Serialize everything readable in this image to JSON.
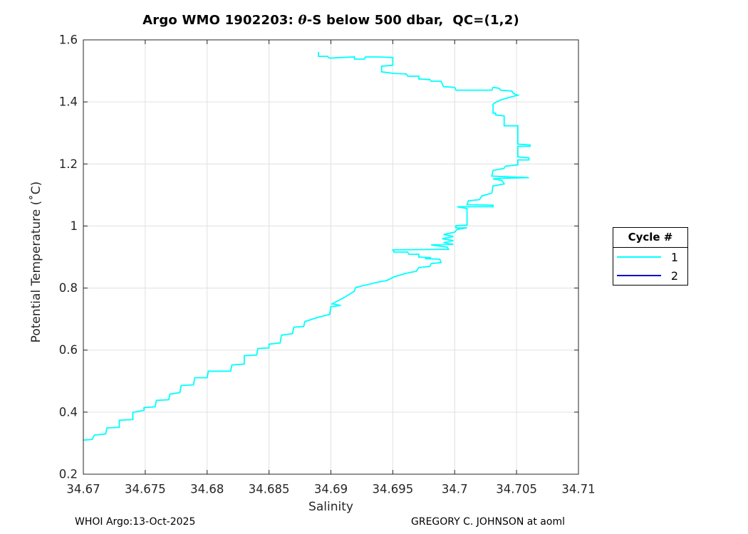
{
  "figure": {
    "title_prefix": "Argo WMO 1902203: ",
    "title_theta": "θ",
    "title_suffix": "-S below 500 dbar,  QC=(1,2)",
    "footer_left": "WHOI Argo:13-Oct-2025",
    "footer_right": "GREGORY C. JOHNSON at aoml"
  },
  "legend": {
    "title": "Cycle #",
    "entries": [
      {
        "label": "1",
        "color": "#00ffff"
      },
      {
        "label": "2",
        "color": "#0000cd"
      }
    ]
  },
  "chart_data": {
    "type": "line",
    "title": "Argo WMO 1902203: θ-S below 500 dbar,  QC=(1,2)",
    "xlabel": "Salinity",
    "ylabel": "Potential Temperature (˚C)",
    "xlim": [
      34.67,
      34.71
    ],
    "ylim": [
      0.2,
      1.6
    ],
    "xticks": [
      34.67,
      34.675,
      34.68,
      34.685,
      34.69,
      34.695,
      34.7,
      34.705,
      34.71
    ],
    "xtick_labels": [
      "34.67",
      "34.675",
      "34.68",
      "34.685",
      "34.69",
      "34.695",
      "34.7",
      "34.705",
      "34.71"
    ],
    "yticks": [
      0.2,
      0.4,
      0.6,
      0.8,
      1,
      1.2,
      1.4,
      1.6
    ],
    "ytick_labels": [
      "0.2",
      "0.4",
      "0.6",
      "0.8",
      "1",
      "1.2",
      "1.4",
      "1.6"
    ],
    "grid": true,
    "grid_color": "#e0e0e0",
    "axis_color": "#262626",
    "legend_position": "right-outside",
    "series": [
      {
        "name": "1",
        "color": "#00ffff",
        "points": [
          [
            34.689,
            1.561
          ],
          [
            34.689,
            1.547
          ],
          [
            34.6897,
            1.547
          ],
          [
            34.6899,
            1.541
          ],
          [
            34.6908,
            1.543
          ],
          [
            34.6919,
            1.545
          ],
          [
            34.6919,
            1.538
          ],
          [
            34.6927,
            1.538
          ],
          [
            34.6928,
            1.545
          ],
          [
            34.6939,
            1.545
          ],
          [
            34.695,
            1.543
          ],
          [
            34.695,
            1.518
          ],
          [
            34.6941,
            1.515
          ],
          [
            34.6941,
            1.497
          ],
          [
            34.6951,
            1.492
          ],
          [
            34.6961,
            1.49
          ],
          [
            34.6962,
            1.483
          ],
          [
            34.6971,
            1.483
          ],
          [
            34.6971,
            1.474
          ],
          [
            34.698,
            1.472
          ],
          [
            34.6981,
            1.467
          ],
          [
            34.6989,
            1.467
          ],
          [
            34.6991,
            1.449
          ],
          [
            34.7,
            1.447
          ],
          [
            34.7001,
            1.438
          ],
          [
            34.703,
            1.438
          ],
          [
            34.7031,
            1.447
          ],
          [
            34.7036,
            1.444
          ],
          [
            34.7037,
            1.438
          ],
          [
            34.7046,
            1.435
          ],
          [
            34.7048,
            1.426
          ],
          [
            34.7051,
            1.422
          ],
          [
            34.7042,
            1.412
          ],
          [
            34.7037,
            1.406
          ],
          [
            34.7032,
            1.396
          ],
          [
            34.7031,
            1.392
          ],
          [
            34.7031,
            1.364
          ],
          [
            34.7033,
            1.364
          ],
          [
            34.7033,
            1.358
          ],
          [
            34.704,
            1.355
          ],
          [
            34.704,
            1.323
          ],
          [
            34.7051,
            1.323
          ],
          [
            34.7051,
            1.264
          ],
          [
            34.7061,
            1.261
          ],
          [
            34.7061,
            1.257
          ],
          [
            34.7051,
            1.257
          ],
          [
            34.7051,
            1.223
          ],
          [
            34.706,
            1.22
          ],
          [
            34.706,
            1.213
          ],
          [
            34.7051,
            1.213
          ],
          [
            34.7051,
            1.197
          ],
          [
            34.7041,
            1.193
          ],
          [
            34.704,
            1.186
          ],
          [
            34.7031,
            1.179
          ],
          [
            34.703,
            1.161
          ],
          [
            34.704,
            1.159
          ],
          [
            34.706,
            1.156
          ],
          [
            34.7041,
            1.154
          ],
          [
            34.7031,
            1.152
          ],
          [
            34.7038,
            1.147
          ],
          [
            34.704,
            1.136
          ],
          [
            34.7031,
            1.129
          ],
          [
            34.703,
            1.106
          ],
          [
            34.7022,
            1.097
          ],
          [
            34.702,
            1.085
          ],
          [
            34.7011,
            1.081
          ],
          [
            34.701,
            1.069
          ],
          [
            34.7031,
            1.067
          ],
          [
            34.7031,
            1.062
          ],
          [
            34.7002,
            1.062
          ],
          [
            34.701,
            1.056
          ],
          [
            34.701,
            1.003
          ],
          [
            34.7001,
            1.001
          ],
          [
            34.7001,
            0.994
          ],
          [
            34.701,
            0.994
          ],
          [
            34.7002,
            0.989
          ],
          [
            34.7,
            0.98
          ],
          [
            34.6991,
            0.973
          ],
          [
            34.6999,
            0.966
          ],
          [
            34.699,
            0.959
          ],
          [
            34.6999,
            0.953
          ],
          [
            34.6991,
            0.946
          ],
          [
            34.6999,
            0.941
          ],
          [
            34.6981,
            0.939
          ],
          [
            34.6994,
            0.932
          ],
          [
            34.6995,
            0.925
          ],
          [
            34.695,
            0.923
          ],
          [
            34.6951,
            0.916
          ],
          [
            34.6962,
            0.916
          ],
          [
            34.6963,
            0.909
          ],
          [
            34.6971,
            0.909
          ],
          [
            34.6971,
            0.9
          ],
          [
            34.6981,
            0.898
          ],
          [
            34.6976,
            0.895
          ],
          [
            34.6988,
            0.893
          ],
          [
            34.6989,
            0.882
          ],
          [
            34.6981,
            0.879
          ],
          [
            34.698,
            0.87
          ],
          [
            34.6971,
            0.866
          ],
          [
            34.6969,
            0.854
          ],
          [
            34.696,
            0.847
          ],
          [
            34.6951,
            0.836
          ],
          [
            34.6945,
            0.824
          ],
          [
            34.6939,
            0.82
          ],
          [
            34.692,
            0.802
          ],
          [
            34.6919,
            0.79
          ],
          [
            34.6911,
            0.77
          ],
          [
            34.6901,
            0.749
          ],
          [
            34.6908,
            0.744
          ],
          [
            34.69,
            0.74
          ],
          [
            34.6899,
            0.715
          ],
          [
            34.689,
            0.706
          ],
          [
            34.6879,
            0.692
          ],
          [
            34.6878,
            0.676
          ],
          [
            34.687,
            0.674
          ],
          [
            34.6869,
            0.653
          ],
          [
            34.686,
            0.648
          ],
          [
            34.6859,
            0.623
          ],
          [
            34.685,
            0.619
          ],
          [
            34.685,
            0.607
          ],
          [
            34.6841,
            0.605
          ],
          [
            34.684,
            0.584
          ],
          [
            34.683,
            0.582
          ],
          [
            34.683,
            0.555
          ],
          [
            34.682,
            0.552
          ],
          [
            34.6819,
            0.532
          ],
          [
            34.6801,
            0.532
          ],
          [
            34.68,
            0.511
          ],
          [
            34.679,
            0.511
          ],
          [
            34.6789,
            0.488
          ],
          [
            34.6779,
            0.486
          ],
          [
            34.6778,
            0.463
          ],
          [
            34.677,
            0.458
          ],
          [
            34.6769,
            0.44
          ],
          [
            34.6759,
            0.438
          ],
          [
            34.6758,
            0.417
          ],
          [
            34.6749,
            0.415
          ],
          [
            34.6749,
            0.406
          ],
          [
            34.674,
            0.399
          ],
          [
            34.674,
            0.376
          ],
          [
            34.6729,
            0.374
          ],
          [
            34.6729,
            0.351
          ],
          [
            34.6719,
            0.349
          ],
          [
            34.6718,
            0.33
          ],
          [
            34.6709,
            0.326
          ],
          [
            34.6707,
            0.312
          ],
          [
            34.67,
            0.31
          ]
        ]
      },
      {
        "name": "2",
        "color": "#0000cd",
        "points": []
      }
    ]
  }
}
